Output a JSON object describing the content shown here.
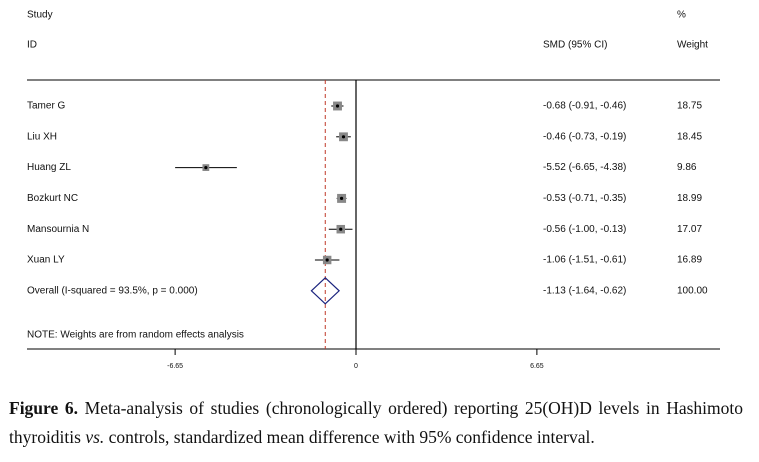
{
  "chart_data": {
    "type": "forest",
    "header": {
      "study": "Study",
      "id": "ID",
      "effect": "SMD (95% CI)",
      "percent": "%",
      "weight": "Weight"
    },
    "studies": [
      {
        "name": "Tamer G",
        "smd": -0.68,
        "lower": -0.91,
        "upper": -0.46,
        "ci_label": "-0.68 (-0.91, -0.46)",
        "weight": 18.75
      },
      {
        "name": "Liu XH",
        "smd": -0.46,
        "lower": -0.73,
        "upper": -0.19,
        "ci_label": "-0.46 (-0.73, -0.19)",
        "weight": 18.45
      },
      {
        "name": "Huang ZL",
        "smd": -5.52,
        "lower": -6.65,
        "upper": -4.38,
        "ci_label": "-5.52 (-6.65, -4.38)",
        "weight": 9.86
      },
      {
        "name": "Bozkurt NC",
        "smd": -0.53,
        "lower": -0.71,
        "upper": -0.35,
        "ci_label": "-0.53 (-0.71, -0.35)",
        "weight": 18.99
      },
      {
        "name": "Mansournia N",
        "smd": -0.56,
        "lower": -1.0,
        "upper": -0.13,
        "ci_label": "-0.56 (-1.00, -0.13)",
        "weight": 17.07
      },
      {
        "name": "Xuan LY",
        "smd": -1.06,
        "lower": -1.51,
        "upper": -0.61,
        "ci_label": "-1.06 (-1.51, -0.61)",
        "weight": 16.89
      }
    ],
    "overall": {
      "name": "Overall  (I-squared = 93.5%, p = 0.000)",
      "smd": -1.13,
      "lower": -1.64,
      "upper": -0.62,
      "ci_label": "-1.13 (-1.64, -0.62)",
      "weight": {
        "value": 100,
        "label": "100.00"
      }
    },
    "note": "NOTE: Weights are from random effects analysis",
    "xlim": [
      -12,
      12
    ],
    "xticks": [
      -6.65,
      0,
      6.65
    ],
    "overall_line_color": "#c0392b",
    "caption": {
      "label": "Figure 6.",
      "parts": [
        " Meta-analysis of studies (chronologically ordered) reporting 25(OH)D levels in Hashimoto thyroiditis ",
        "vs.",
        " controls, standardized mean difference with 95% confidence interval."
      ]
    }
  }
}
